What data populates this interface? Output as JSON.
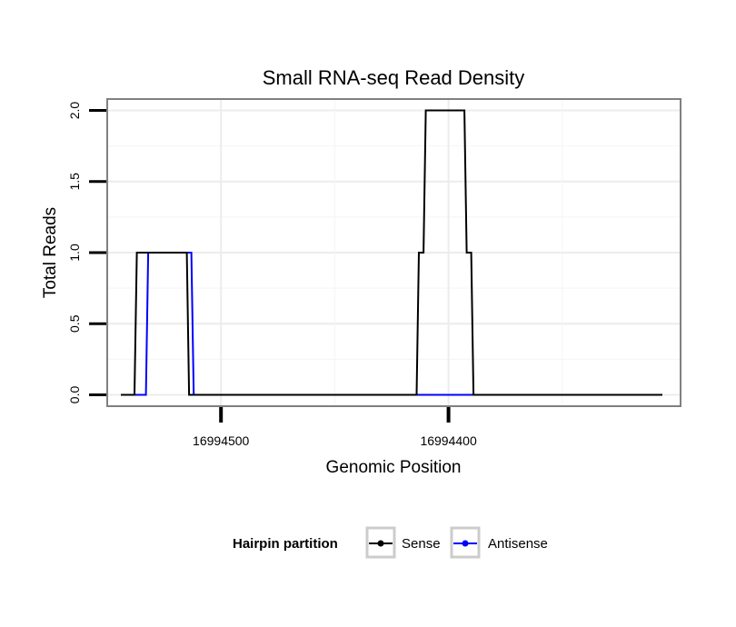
{
  "chart_data": {
    "type": "line",
    "title": "Small RNA-seq Read Density",
    "xlabel": "Genomic Position",
    "ylabel": "Total Reads",
    "x_reversed": true,
    "xlim": [
      16994550,
      16994298
    ],
    "ylim": [
      -0.08,
      2.08
    ],
    "x_ticks": [
      16994500,
      16994400
    ],
    "x_tick_labels": [
      "16994500",
      "16994400"
    ],
    "y_ticks": [
      0.0,
      0.5,
      1.0,
      1.5,
      2.0
    ],
    "y_tick_labels": [
      "0.0",
      "0.5",
      "1.0",
      "1.5",
      "2.0"
    ],
    "grid": true,
    "legend": {
      "title": "Hairpin partition",
      "position": "bottom",
      "entries": [
        "Sense",
        "Antisense"
      ]
    },
    "series": [
      {
        "name": "Sense",
        "color": "#000000",
        "points": [
          [
            16994544,
            0
          ],
          [
            16994538,
            0
          ],
          [
            16994537,
            1
          ],
          [
            16994515,
            1
          ],
          [
            16994514,
            0
          ],
          [
            16994416,
            0
          ],
          [
            16994414,
            0
          ],
          [
            16994413,
            1
          ],
          [
            16994411,
            1
          ],
          [
            16994410,
            2
          ],
          [
            16994393,
            2
          ],
          [
            16994392,
            1
          ],
          [
            16994390,
            1
          ],
          [
            16994389,
            0
          ],
          [
            16994306,
            0
          ]
        ]
      },
      {
        "name": "Antisense",
        "color": "#0000ff",
        "points": [
          [
            16994544,
            0
          ],
          [
            16994533,
            0
          ],
          [
            16994532,
            1
          ],
          [
            16994513,
            1
          ],
          [
            16994512,
            0
          ],
          [
            16994416,
            0
          ],
          [
            16994389,
            0
          ]
        ]
      }
    ]
  }
}
